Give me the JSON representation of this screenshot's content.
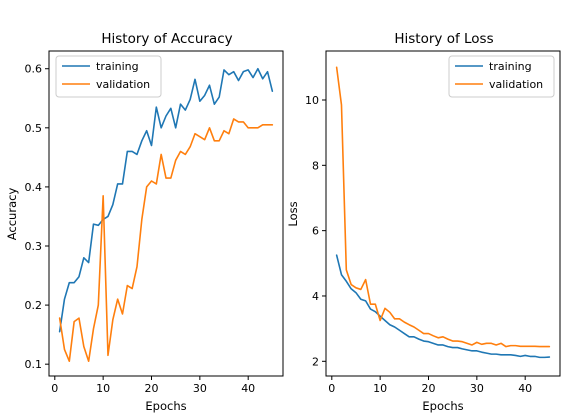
{
  "colors": {
    "training": "#1f77b4",
    "validation": "#ff7f0e",
    "axis": "#000000",
    "legend_border": "#cccccc"
  },
  "chart_data": [
    {
      "type": "line",
      "title": "History of Accuracy",
      "xlabel": "Epochs",
      "ylabel": "Accuracy",
      "xlim": [
        -1.2,
        47.2
      ],
      "ylim": [
        0.08,
        0.63
      ],
      "xticks": [
        0,
        10,
        20,
        30,
        40
      ],
      "yticks": [
        0.1,
        0.2,
        0.3,
        0.4,
        0.5,
        0.6
      ],
      "ytick_labels": [
        "0.1",
        "0.2",
        "0.3",
        "0.4",
        "0.5",
        "0.6"
      ],
      "legend": "upper-left",
      "grid": false,
      "x": [
        1,
        2,
        3,
        4,
        5,
        6,
        7,
        8,
        9,
        10,
        11,
        12,
        13,
        14,
        15,
        16,
        17,
        18,
        19,
        20,
        21,
        22,
        23,
        24,
        25,
        26,
        27,
        28,
        29,
        30,
        31,
        32,
        33,
        34,
        35,
        36,
        37,
        38,
        39,
        40,
        41,
        42,
        43,
        44,
        45
      ],
      "series": [
        {
          "name": "training",
          "values": [
            0.155,
            0.21,
            0.238,
            0.238,
            0.248,
            0.28,
            0.272,
            0.337,
            0.335,
            0.345,
            0.35,
            0.37,
            0.405,
            0.405,
            0.46,
            0.46,
            0.455,
            0.478,
            0.495,
            0.47,
            0.535,
            0.5,
            0.52,
            0.533,
            0.5,
            0.54,
            0.53,
            0.548,
            0.582,
            0.545,
            0.555,
            0.572,
            0.54,
            0.552,
            0.598,
            0.59,
            0.595,
            0.58,
            0.595,
            0.598,
            0.585,
            0.6,
            0.583,
            0.595,
            0.562
          ]
        },
        {
          "name": "validation",
          "values": [
            0.178,
            0.125,
            0.105,
            0.172,
            0.178,
            0.13,
            0.105,
            0.16,
            0.2,
            0.385,
            0.115,
            0.175,
            0.21,
            0.185,
            0.233,
            0.228,
            0.265,
            0.345,
            0.4,
            0.41,
            0.405,
            0.455,
            0.415,
            0.415,
            0.445,
            0.46,
            0.455,
            0.468,
            0.49,
            0.485,
            0.48,
            0.5,
            0.478,
            0.478,
            0.495,
            0.49,
            0.515,
            0.51,
            0.51,
            0.5,
            0.5,
            0.5,
            0.505,
            0.505,
            0.505
          ]
        }
      ]
    },
    {
      "type": "line",
      "title": "History of Loss",
      "xlabel": "Epochs",
      "ylabel": "Loss",
      "xlim": [
        -1.2,
        47.2
      ],
      "ylim": [
        1.55,
        11.5
      ],
      "xticks": [
        0,
        10,
        20,
        30,
        40
      ],
      "yticks": [
        2,
        4,
        6,
        8,
        10
      ],
      "ytick_labels": [
        "2",
        "4",
        "6",
        "8",
        "10"
      ],
      "legend": "upper-right",
      "grid": false,
      "x": [
        1,
        2,
        3,
        4,
        5,
        6,
        7,
        8,
        9,
        10,
        11,
        12,
        13,
        14,
        15,
        16,
        17,
        18,
        19,
        20,
        21,
        22,
        23,
        24,
        25,
        26,
        27,
        28,
        29,
        30,
        31,
        32,
        33,
        34,
        35,
        36,
        37,
        38,
        39,
        40,
        41,
        42,
        43,
        44,
        45
      ],
      "series": [
        {
          "name": "training",
          "values": [
            5.25,
            4.65,
            4.45,
            4.22,
            4.1,
            3.9,
            3.85,
            3.6,
            3.52,
            3.38,
            3.25,
            3.12,
            3.05,
            2.95,
            2.85,
            2.75,
            2.75,
            2.68,
            2.62,
            2.6,
            2.55,
            2.5,
            2.5,
            2.45,
            2.42,
            2.42,
            2.38,
            2.35,
            2.32,
            2.32,
            2.28,
            2.25,
            2.22,
            2.22,
            2.2,
            2.2,
            2.2,
            2.18,
            2.15,
            2.18,
            2.15,
            2.15,
            2.12,
            2.12,
            2.13
          ]
        },
        {
          "name": "validation",
          "values": [
            11.0,
            9.85,
            4.8,
            4.35,
            4.25,
            4.2,
            4.5,
            3.75,
            3.75,
            3.25,
            3.62,
            3.5,
            3.3,
            3.3,
            3.2,
            3.12,
            3.05,
            2.95,
            2.85,
            2.85,
            2.78,
            2.72,
            2.75,
            2.68,
            2.62,
            2.62,
            2.6,
            2.55,
            2.5,
            2.58,
            2.52,
            2.55,
            2.55,
            2.5,
            2.55,
            2.45,
            2.48,
            2.48,
            2.46,
            2.46,
            2.46,
            2.46,
            2.45,
            2.45,
            2.45
          ]
        }
      ]
    }
  ]
}
